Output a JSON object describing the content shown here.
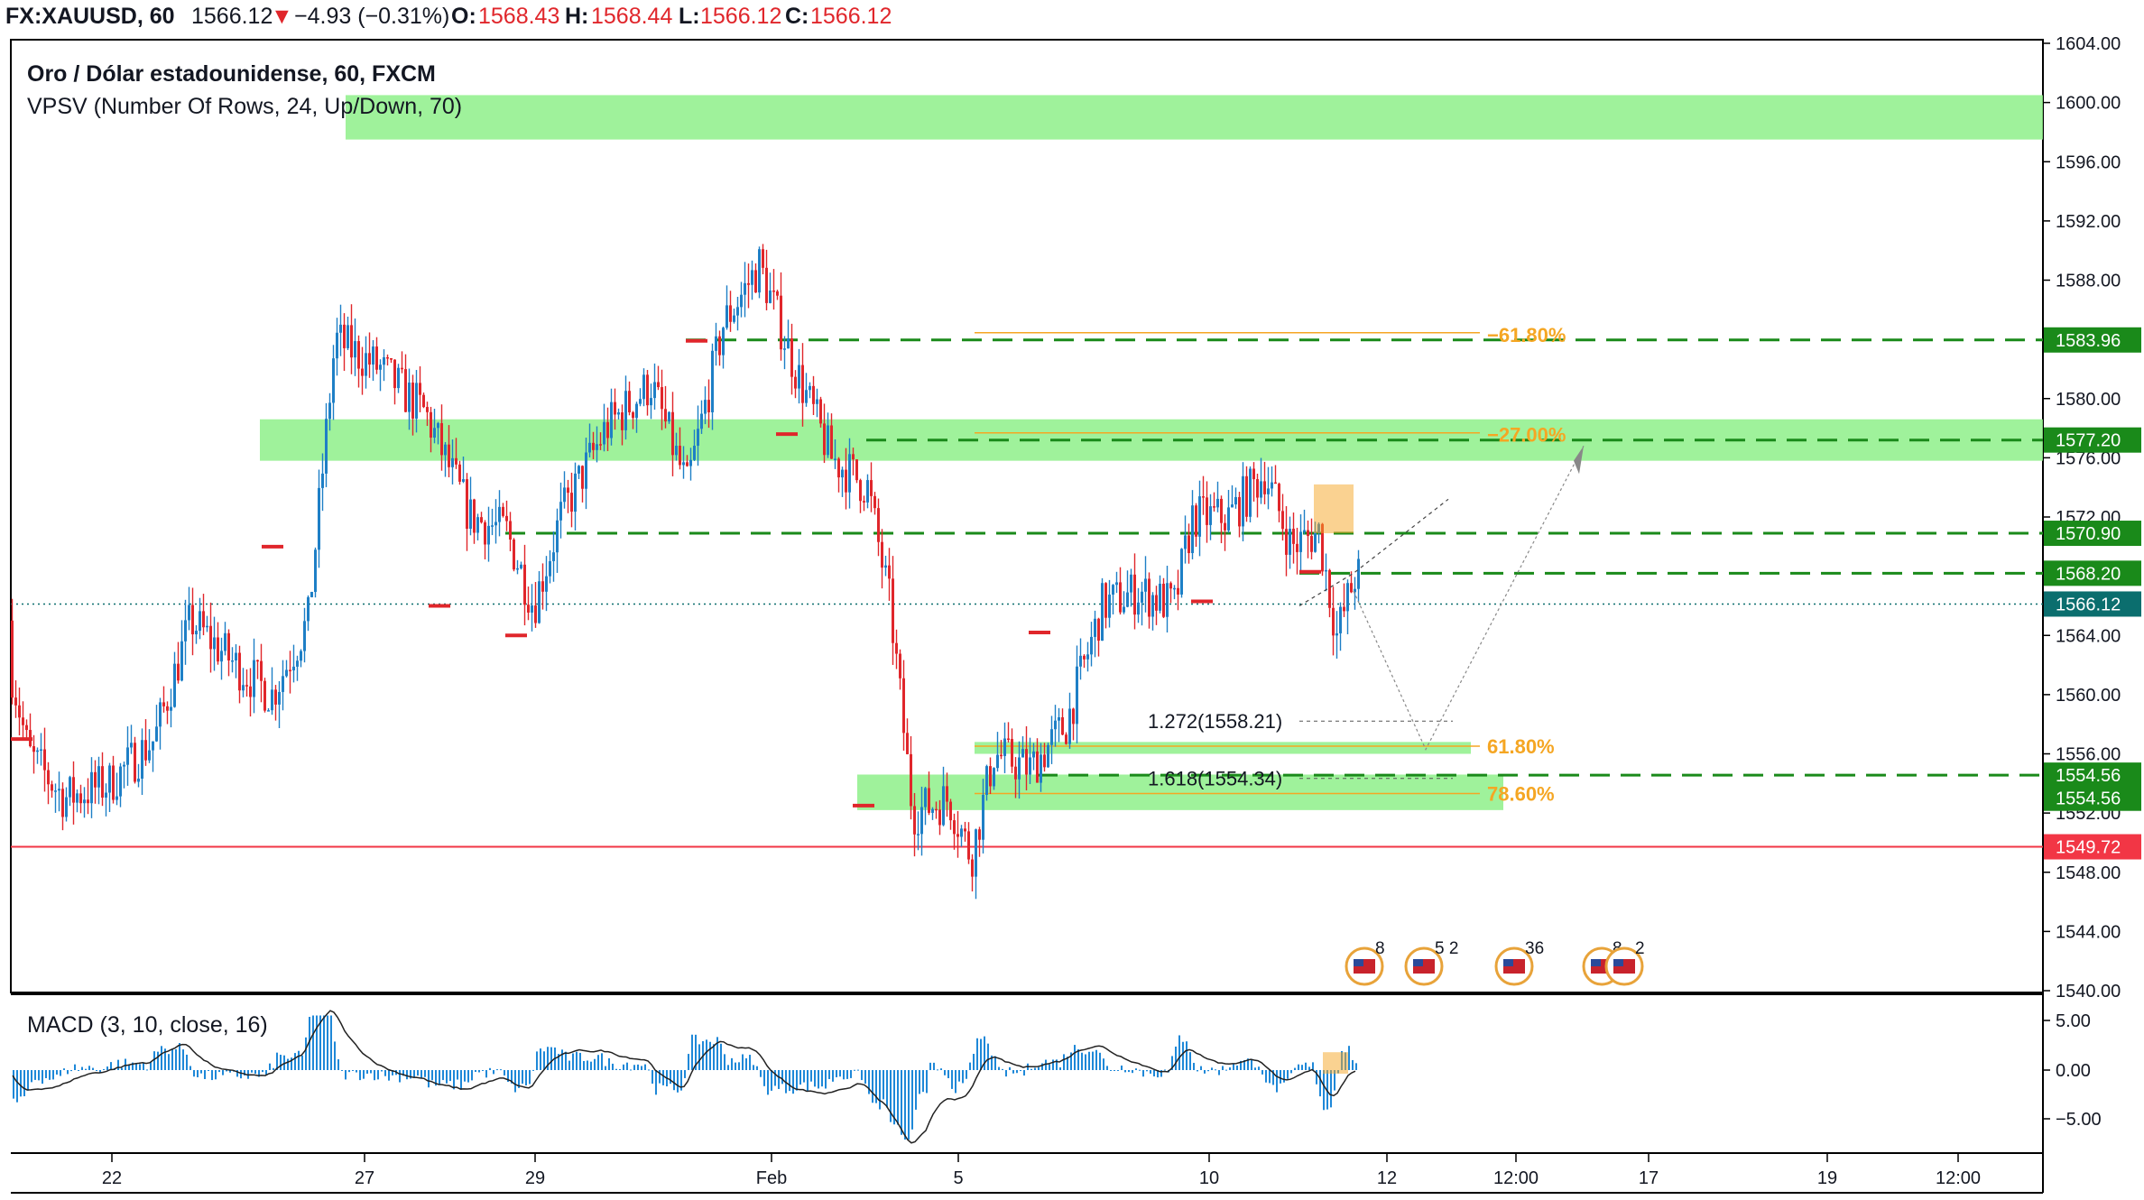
{
  "header": {
    "symbol": "FX:XAUUSD, 60",
    "last": "1566.12",
    "change": "−4.93 (−0.31%)",
    "o_label": "O:",
    "o": "1568.43",
    "h_label": "H:",
    "h": "1568.44",
    "l_label": "L:",
    "l": "1566.12",
    "c_label": "C:",
    "c": "1566.12"
  },
  "legend": {
    "title": "Oro / Dólar estadounidense, 60, FXCM",
    "indicator": "VPSV (Number Of Rows, 24, Up/Down, 70)",
    "macd": "MACD (3, 10, close, 16)"
  },
  "colors": {
    "up": "#1e7fc6",
    "down": "#e0262b",
    "zone": "#8ef08a",
    "level_green": "#1a8a1a",
    "support_red": "#f23645",
    "fib": "#f5a623",
    "last_tag": "#0b6e6e"
  },
  "chart_data": {
    "type": "candlestick",
    "ylim": [
      1540,
      1604
    ],
    "y_ticks": [
      "1604.00",
      "1600.00",
      "1596.00",
      "1592.00",
      "1588.00",
      "1584.00",
      "1580.00",
      "1576.00",
      "1572.00",
      "1568.00",
      "1564.00",
      "1560.00",
      "1556.00",
      "1552.00",
      "1548.00",
      "1544.00",
      "1540.00"
    ],
    "x_ticks": [
      "22",
      "27",
      "29",
      "Feb",
      "5",
      "10",
      "12",
      "12:00",
      "17",
      "19",
      "12:00"
    ],
    "price_tags": [
      {
        "label": "1583.96",
        "value": 1583.96,
        "color": "#1a8a1a"
      },
      {
        "label": "1577.20",
        "value": 1577.2,
        "color": "#1a8a1a"
      },
      {
        "label": "1570.90",
        "value": 1570.9,
        "color": "#1a8a1a"
      },
      {
        "label": "1568.20",
        "value": 1568.2,
        "color": "#1a8a1a"
      },
      {
        "label": "1566.12",
        "value": 1566.12,
        "color": "#0b6e6e"
      },
      {
        "label": "1554.56",
        "value": 1554.56,
        "color": "#1a8a1a"
      },
      {
        "label": "1554.56",
        "value": 1553.0,
        "color": "#1a8a1a"
      },
      {
        "label": "1549.72",
        "value": 1549.72,
        "color": "#f23645"
      }
    ],
    "zones": [
      {
        "from": 1597.5,
        "to": 1600.5
      },
      {
        "from": 1575.8,
        "to": 1578.6
      },
      {
        "from": 1556.0,
        "to": 1556.8
      },
      {
        "from": 1552.2,
        "to": 1554.6
      }
    ],
    "fib_levels": [
      {
        "label": "−61.80%",
        "value": 1583.96
      },
      {
        "label": "−27.00%",
        "value": 1577.2
      },
      {
        "label": "61.80%",
        "value": 1556.4
      },
      {
        "label": "78.60%",
        "value": 1553.2
      }
    ],
    "extensions": [
      {
        "label": "1.272(1558.21)",
        "value": 1558.21
      },
      {
        "label": "1.618(1554.34)",
        "value": 1554.34
      }
    ],
    "last_price": 1566.12,
    "support": 1549.72,
    "macd": {
      "ylim": [
        -7,
        6
      ],
      "ticks": [
        "5.00",
        "0.00",
        "−5.00"
      ]
    },
    "events": [
      {
        "count": "8"
      },
      {
        "count": "5 2"
      },
      {
        "count": "36"
      },
      {
        "count": "8"
      },
      {
        "count": "2"
      }
    ]
  }
}
